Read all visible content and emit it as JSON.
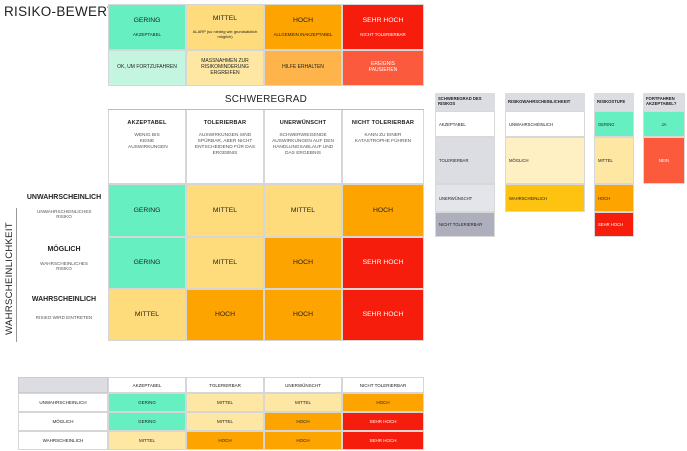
{
  "title": "RISIKO-BEWERTUNGS-SCHLÜSSEL",
  "legend": {
    "levels": [
      {
        "label": "GERING",
        "desc": "AKZEPTABEL",
        "action": "OK, UM FORTZUFAHREN"
      },
      {
        "label": "MITTEL",
        "desc": "ALARP (so niedrig wie grundsätzlich möglich)",
        "action": "MASSNAHMEN ZUR RISIKOMINDERUNG ERGREIFEN"
      },
      {
        "label": "HOCH",
        "desc": "ALLGEMEIN INAKZEPTABEL",
        "action": "HILFE ERHALTEN"
      },
      {
        "label": "SEHR HOCH",
        "desc": "NICHT TOLERIERBAR",
        "action": "EREIGNIS PAUSIEREN"
      }
    ]
  },
  "matrix": {
    "severity_title": "SCHWEREGRAD",
    "likelihood_title": "WAHRSCHEINLICHKEIT",
    "columns": [
      {
        "label": "AKZEPTABEL",
        "desc": "WENIG BIS KEINE AUSWIRKUNGEN"
      },
      {
        "label": "TOLERIERBAR",
        "desc": "AUSWIRKUNGEN SIND SPÜRBAR, ABER NICHT ENTSCHEIDEND FÜR DAS ERGEBNIS"
      },
      {
        "label": "UNERWÜNSCHT",
        "desc": "SCHWERWIEGENDE AUSWIRKUNGEN AUF DEN HANDLUNGSABLAUF UND DAS ERGEBNIS"
      },
      {
        "label": "NICHT TOLERIERBAR",
        "desc": "KANN ZU EINER KATASTROPHE FÜHREN"
      }
    ],
    "rows": [
      {
        "label": "UNWAHRSCHEINLICH",
        "desc": "UNWAHRSCHEINLICHES RISIKO",
        "cells": [
          "GERING",
          "MITTEL",
          "MITTEL",
          "HOCH"
        ]
      },
      {
        "label": "MÖGLICH",
        "desc": "WAHRSCHEINLICHES RISIKO",
        "cells": [
          "GERING",
          "MITTEL",
          "HOCH",
          "SEHR HOCH"
        ]
      },
      {
        "label": "WAHRSCHEINLICH",
        "desc": "RISIKO WIRD EINTRETEN",
        "cells": [
          "MITTEL",
          "HOCH",
          "HOCH",
          "SEHR HOCH"
        ]
      }
    ]
  },
  "key": {
    "severity": {
      "header": "SCHWEREGRAD DES RISIKOS",
      "items": [
        "AKZEPTABEL",
        "TOLERIERBAR",
        "UNERWÜNSCHT",
        "NICHT TOLERIERBAR"
      ]
    },
    "likelihood": {
      "header": "RISIKOWAHRSCHEINLICHKEIT",
      "items": [
        "UNWAHRSCHEINLICH",
        "MÖGLICH",
        "WAHRSCHEINLICH"
      ]
    },
    "level": {
      "header": "RISIKOSTUFE",
      "items": [
        "GERING",
        "MITTEL",
        "HOCH",
        "SEHR HOCH"
      ]
    },
    "proceed": {
      "header": "FORTFAHREN AKZEPTABEL?",
      "items": [
        "JA",
        "NEIN"
      ]
    }
  },
  "table": {
    "columns": [
      "AKZEPTABEL",
      "TOLERIERBAR",
      "UNERWÜNSCHT",
      "NICHT TOLERIERBAR"
    ],
    "rows": [
      {
        "label": "UNWAHRSCHEINLICH",
        "cells": [
          "GERING",
          "MITTEL",
          "MITTEL",
          "HOCH"
        ]
      },
      {
        "label": "MÖGLICH",
        "cells": [
          "GERING",
          "MITTEL",
          "HOCH",
          "SEHR HOCH"
        ]
      },
      {
        "label": "WAHRSCHEINLICH",
        "cells": [
          "MITTEL",
          "HOCH",
          "HOCH",
          "SEHR HOCH"
        ]
      }
    ]
  },
  "colors": {
    "gering": "#66f0c1",
    "mittel": "#fedc7b",
    "hoch": "#fea400",
    "sehr_hoch": "#f71d0d"
  }
}
